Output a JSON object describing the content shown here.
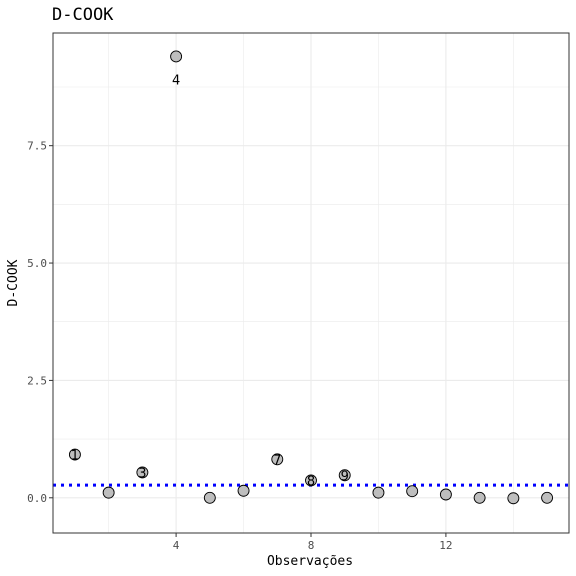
{
  "chart_data": {
    "type": "scatter",
    "title": "D-COOK",
    "xlabel": "Observações",
    "ylabel": "D-COOK",
    "xlim": [
      0.35,
      15.65
    ],
    "ylim": [
      -0.75,
      9.9
    ],
    "xticks": [
      4,
      8,
      12
    ],
    "xtick_labels": [
      "4",
      "8",
      "12"
    ],
    "yticks": [
      0,
      2.5,
      5,
      7.5
    ],
    "ytick_labels": [
      "0.0",
      "2.5",
      "5.0",
      "7.5"
    ],
    "grid": true,
    "points": [
      {
        "x": 1,
        "y": 0.92,
        "label": "1"
      },
      {
        "x": 2,
        "y": 0.11,
        "label": ""
      },
      {
        "x": 3,
        "y": 0.54,
        "label": "3"
      },
      {
        "x": 4,
        "y": 9.4,
        "label": "4"
      },
      {
        "x": 5,
        "y": 0.0,
        "label": ""
      },
      {
        "x": 6,
        "y": 0.15,
        "label": ""
      },
      {
        "x": 7,
        "y": 0.82,
        "label": "7"
      },
      {
        "x": 8,
        "y": 0.37,
        "label": "8"
      },
      {
        "x": 9,
        "y": 0.48,
        "label": "9"
      },
      {
        "x": 10,
        "y": 0.11,
        "label": ""
      },
      {
        "x": 11,
        "y": 0.14,
        "label": ""
      },
      {
        "x": 12,
        "y": 0.07,
        "label": ""
      },
      {
        "x": 13,
        "y": 0.0,
        "label": ""
      },
      {
        "x": 14,
        "y": -0.01,
        "label": ""
      },
      {
        "x": 15,
        "y": 0.0,
        "label": ""
      }
    ],
    "reference_line": {
      "y": 0.27,
      "style": "dotted",
      "color": "#0000ff"
    },
    "point_fill": "#bebebe",
    "point_stroke": "#000000",
    "grid_color": "#ebebeb",
    "panel_border_color": "#333333"
  }
}
